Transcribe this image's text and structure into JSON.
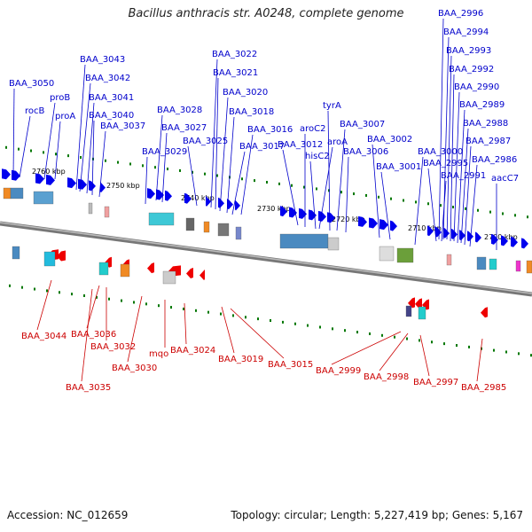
{
  "title": "Bacillus anthracis str. A0248, complete genome",
  "accession_text": "Accession: NC_012659",
  "topology_text": "Topology: circular; Length: 5,227,419 bp; Genes: 5,167",
  "colors": {
    "top_label": "#0000cc",
    "bottom_label": "#cc0000",
    "forward_arrow": "#0000ee",
    "reverse_arrow": "#ee0000",
    "backbone": "#888888",
    "tick": "#007700"
  },
  "ticks": [
    "2760 kbp",
    "2750 kbp",
    "2740 kbp",
    "2730 kbp",
    "2720 kbp",
    "2710 kbp",
    "2700 kbp"
  ],
  "top_genes": [
    "BAA_3050",
    "rocB",
    "proB",
    "proA",
    "BAA_3043",
    "BAA_3042",
    "BAA_3041",
    "BAA_3040",
    "BAA_3037",
    "BAA_3028",
    "BAA_3027",
    "BAA_3029",
    "BAA_3025",
    "BAA_3022",
    "BAA_3021",
    "BAA_3020",
    "BAA_3018",
    "BAA_3016",
    "BAA_3017",
    "BAA_3012",
    "aroC2",
    "hisC2",
    "aroA",
    "tyrA",
    "BAA_3007",
    "BAA_3006",
    "BAA_3002",
    "BAA_3001",
    "BAA_3000",
    "BAA_2996",
    "BAA_2994",
    "BAA_2993",
    "BAA_2992",
    "BAA_2990",
    "BAA_2989",
    "BAA_2988",
    "BAA_2987",
    "BAA_2986",
    "BAA_2995",
    "BAA_2991",
    "aacC7"
  ],
  "bottom_genes": [
    "BAA_3044",
    "BAA_3036",
    "BAA_3032",
    "BAA_3035",
    "BAA_3030",
    "mqo",
    "BAA_3024",
    "BAA_3019",
    "BAA_3015",
    "BAA_2999",
    "BAA_2998",
    "BAA_2997",
    "BAA_2985"
  ]
}
